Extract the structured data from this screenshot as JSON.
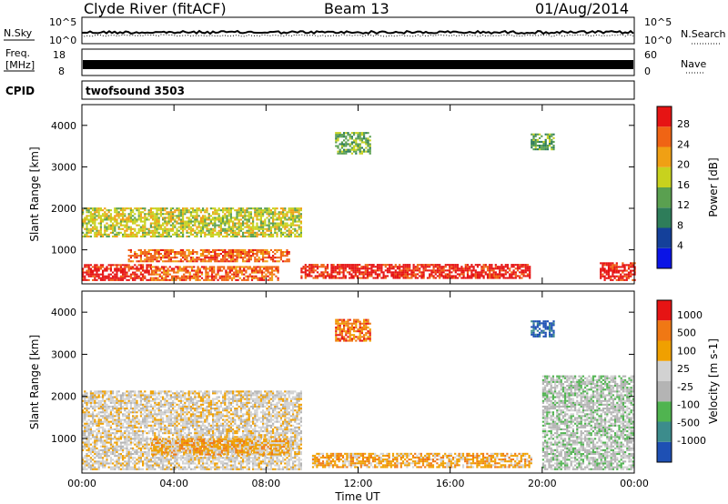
{
  "header": {
    "station": "Clyde River (fitACF)",
    "beam": "Beam 13",
    "date": "01/Aug/2014"
  },
  "strips": {
    "nsky_label": "N.Sky",
    "nsky_ticks": [
      "10^5",
      "10^0"
    ],
    "nsearch_label": "N.Search",
    "nsearch_ticks": [
      "10^5",
      "10^0"
    ],
    "freq_label": "Freq.",
    "freq_unit": "[MHz]",
    "freq_ticks": [
      "18",
      "8"
    ],
    "nave_label": "Nave",
    "nave_ticks": [
      "60",
      "0"
    ],
    "cpid_label": "CPID",
    "cpid_value": "twofsound 3503"
  },
  "chart_data": [
    {
      "type": "heatmap",
      "title": "",
      "xlabel": "Time UT",
      "ylabel": "Slant Range [km]",
      "x_ticks": [
        "00:00",
        "04:00",
        "08:00",
        "12:00",
        "16:00",
        "20:00",
        "00:00"
      ],
      "y_ticks": [
        "1000",
        "2000",
        "3000",
        "4000"
      ],
      "xlim_hours": [
        0,
        24
      ],
      "ylim_km": [
        180,
        4500
      ],
      "colorbar_label": "Power [dB]",
      "colorbar_ticks": [
        "28",
        "24",
        "20",
        "16",
        "12",
        "8",
        "4"
      ],
      "colors": [
        "#0a14e6",
        "#14409a",
        "#2e7d5a",
        "#5aa050",
        "#c8d21e",
        "#f0a014",
        "#f06414",
        "#e61414"
      ],
      "backscatter_regions": [
        {
          "t0": 0.0,
          "t1": 3.0,
          "r0": 250,
          "r1": 650,
          "level": 7
        },
        {
          "t0": 3.0,
          "t1": 8.5,
          "r0": 250,
          "r1": 600,
          "level": 6
        },
        {
          "t0": 0.0,
          "t1": 9.5,
          "r0": 1300,
          "r1": 2000,
          "level": 4
        },
        {
          "t0": 2.0,
          "t1": 9.0,
          "r0": 700,
          "r1": 1000,
          "level": 6
        },
        {
          "t0": 9.5,
          "t1": 19.5,
          "r0": 300,
          "r1": 650,
          "level": 7
        },
        {
          "t0": 11.0,
          "t1": 12.5,
          "r0": 3300,
          "r1": 3800,
          "level": 3
        },
        {
          "t0": 19.5,
          "t1": 20.5,
          "r0": 3400,
          "r1": 3800,
          "level": 3
        },
        {
          "t0": 22.5,
          "t1": 24.0,
          "r0": 250,
          "r1": 700,
          "level": 7
        }
      ]
    },
    {
      "type": "heatmap",
      "title": "",
      "xlabel": "Time UT",
      "ylabel": "Slant Range [km]",
      "x_ticks": [
        "00:00",
        "04:00",
        "08:00",
        "12:00",
        "16:00",
        "20:00",
        "00:00"
      ],
      "y_ticks": [
        "1000",
        "2000",
        "3000",
        "4000"
      ],
      "xlim_hours": [
        0,
        24
      ],
      "ylim_km": [
        180,
        4500
      ],
      "colorbar_label": "Velocity [m s-1]",
      "colorbar_ticks": [
        "1000",
        "500",
        "100",
        "25",
        "-25",
        "-100",
        "-500",
        "-1000"
      ],
      "colors": [
        "#1e50b4",
        "#3c8c8c",
        "#50b450",
        "#b4b4b4",
        "#d2d2d2",
        "#f0a000",
        "#f07814",
        "#e61414"
      ],
      "backscatter_regions": [
        {
          "t0": 0.0,
          "t1": 9.5,
          "r0": 250,
          "r1": 2100,
          "level": 4
        },
        {
          "t0": 3.0,
          "t1": 9.0,
          "r0": 600,
          "r1": 1000,
          "level": 5
        },
        {
          "t0": 10.0,
          "t1": 19.5,
          "r0": 300,
          "r1": 650,
          "level": 5
        },
        {
          "t0": 11.0,
          "t1": 12.5,
          "r0": 3300,
          "r1": 3800,
          "level": 6
        },
        {
          "t0": 19.5,
          "t1": 20.5,
          "r0": 3400,
          "r1": 3800,
          "level": 0
        },
        {
          "t0": 20.0,
          "t1": 24.0,
          "r0": 250,
          "r1": 2500,
          "level": 3
        }
      ]
    }
  ]
}
